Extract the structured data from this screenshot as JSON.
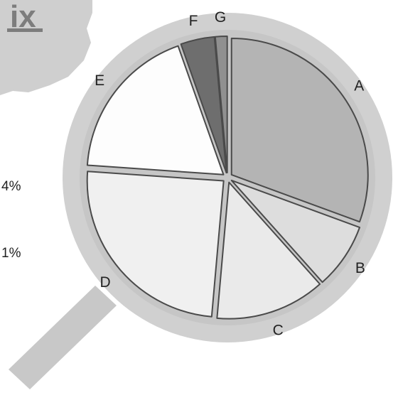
{
  "header": {
    "fragment_text": "ix"
  },
  "side_labels": [
    "4%",
    "1%"
  ],
  "colors": {
    "lens_ring": "#d0d0d0",
    "handle": "#c8c8c8",
    "paper_blob": "#cfcfcf",
    "divider": "#4a4a4a",
    "header_text": "#7d7d7d"
  },
  "chart_data": {
    "type": "pie",
    "title": "",
    "categories": [
      "A",
      "B",
      "C",
      "D",
      "E",
      "F",
      "G"
    ],
    "values": [
      30.6,
      7.8,
      13.0,
      24.7,
      18.5,
      4.0,
      1.4
    ],
    "colors": [
      "#b4b4b4",
      "#dddddd",
      "#eaeaea",
      "#f0f0f0",
      "#fdfdfd",
      "#6e6e6e",
      "#909090"
    ],
    "start_direction": "top (12 o'clock)",
    "direction": "clockwise",
    "labels_outside": true
  }
}
